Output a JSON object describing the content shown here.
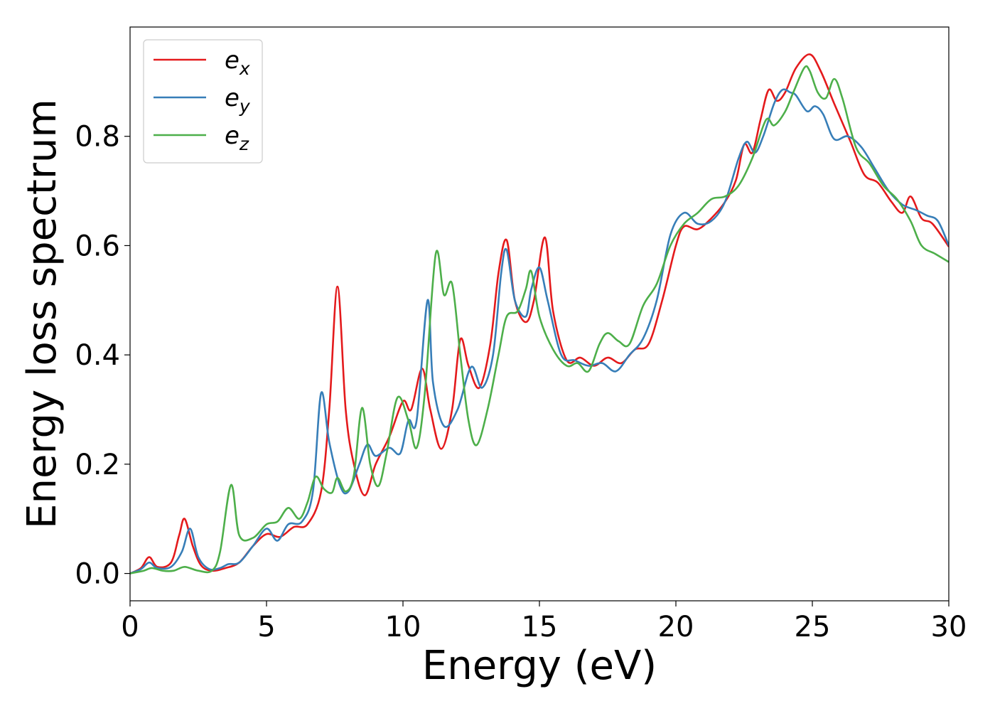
{
  "chart_data": {
    "type": "line",
    "xlabel": "Energy (eV)",
    "ylabel": "Energy loss spectrum",
    "xlim": [
      0,
      30
    ],
    "ylim": [
      -0.05,
      1.0
    ],
    "xticks": [
      0,
      5,
      10,
      15,
      20,
      25,
      30
    ],
    "yticks": [
      0.0,
      0.2,
      0.4,
      0.6,
      0.8
    ],
    "xtick_labels": [
      "0",
      "5",
      "10",
      "15",
      "20",
      "25",
      "30"
    ],
    "ytick_labels": [
      "0.0",
      "0.2",
      "0.4",
      "0.6",
      "0.8"
    ],
    "grid": false,
    "legend_position": "upper-left",
    "series": [
      {
        "name": "e_x",
        "label_base": "e",
        "label_sub": "x",
        "color": "#e41a1c",
        "points": [
          [
            0,
            0.0
          ],
          [
            0.4,
            0.01
          ],
          [
            0.7,
            0.03
          ],
          [
            1.0,
            0.012
          ],
          [
            1.5,
            0.02
          ],
          [
            1.8,
            0.07
          ],
          [
            2.0,
            0.1
          ],
          [
            2.3,
            0.05
          ],
          [
            2.6,
            0.015
          ],
          [
            3.0,
            0.005
          ],
          [
            3.5,
            0.01
          ],
          [
            4.0,
            0.02
          ],
          [
            4.5,
            0.05
          ],
          [
            5.0,
            0.072
          ],
          [
            5.5,
            0.067
          ],
          [
            6.0,
            0.085
          ],
          [
            6.5,
            0.09
          ],
          [
            7.0,
            0.15
          ],
          [
            7.3,
            0.3
          ],
          [
            7.6,
            0.525
          ],
          [
            7.9,
            0.3
          ],
          [
            8.2,
            0.2
          ],
          [
            8.6,
            0.143
          ],
          [
            9.0,
            0.2
          ],
          [
            9.5,
            0.25
          ],
          [
            10.0,
            0.315
          ],
          [
            10.3,
            0.3
          ],
          [
            10.7,
            0.375
          ],
          [
            11.0,
            0.3
          ],
          [
            11.4,
            0.228
          ],
          [
            11.8,
            0.3
          ],
          [
            12.1,
            0.428
          ],
          [
            12.4,
            0.38
          ],
          [
            12.8,
            0.34
          ],
          [
            13.2,
            0.42
          ],
          [
            13.5,
            0.55
          ],
          [
            13.8,
            0.61
          ],
          [
            14.1,
            0.5
          ],
          [
            14.5,
            0.46
          ],
          [
            14.8,
            0.5
          ],
          [
            15.2,
            0.615
          ],
          [
            15.5,
            0.48
          ],
          [
            16.0,
            0.39
          ],
          [
            16.5,
            0.395
          ],
          [
            17.0,
            0.38
          ],
          [
            17.5,
            0.395
          ],
          [
            18.0,
            0.385
          ],
          [
            18.5,
            0.41
          ],
          [
            19.0,
            0.42
          ],
          [
            19.5,
            0.5
          ],
          [
            20.0,
            0.6
          ],
          [
            20.3,
            0.635
          ],
          [
            20.8,
            0.63
          ],
          [
            21.3,
            0.65
          ],
          [
            21.8,
            0.68
          ],
          [
            22.2,
            0.72
          ],
          [
            22.5,
            0.785
          ],
          [
            22.8,
            0.77
          ],
          [
            23.1,
            0.83
          ],
          [
            23.4,
            0.885
          ],
          [
            23.7,
            0.865
          ],
          [
            24.0,
            0.88
          ],
          [
            24.4,
            0.925
          ],
          [
            24.9,
            0.95
          ],
          [
            25.3,
            0.92
          ],
          [
            25.8,
            0.86
          ],
          [
            26.4,
            0.79
          ],
          [
            26.9,
            0.73
          ],
          [
            27.4,
            0.715
          ],
          [
            27.9,
            0.68
          ],
          [
            28.3,
            0.66
          ],
          [
            28.6,
            0.69
          ],
          [
            29.0,
            0.65
          ],
          [
            29.4,
            0.64
          ],
          [
            30.0,
            0.598
          ]
        ]
      },
      {
        "name": "e_y",
        "label_base": "e",
        "label_sub": "y",
        "color": "#377eb8",
        "points": [
          [
            0,
            0.0
          ],
          [
            0.4,
            0.008
          ],
          [
            0.7,
            0.02
          ],
          [
            1.0,
            0.01
          ],
          [
            1.5,
            0.012
          ],
          [
            1.9,
            0.04
          ],
          [
            2.2,
            0.082
          ],
          [
            2.5,
            0.03
          ],
          [
            2.9,
            0.008
          ],
          [
            3.3,
            0.01
          ],
          [
            3.6,
            0.017
          ],
          [
            4.0,
            0.02
          ],
          [
            4.5,
            0.05
          ],
          [
            5.0,
            0.082
          ],
          [
            5.4,
            0.06
          ],
          [
            5.8,
            0.09
          ],
          [
            6.3,
            0.095
          ],
          [
            6.7,
            0.15
          ],
          [
            7.0,
            0.33
          ],
          [
            7.3,
            0.24
          ],
          [
            7.7,
            0.16
          ],
          [
            8.0,
            0.15
          ],
          [
            8.4,
            0.2
          ],
          [
            8.7,
            0.236
          ],
          [
            9.0,
            0.215
          ],
          [
            9.5,
            0.23
          ],
          [
            9.9,
            0.22
          ],
          [
            10.2,
            0.28
          ],
          [
            10.5,
            0.28
          ],
          [
            10.9,
            0.5
          ],
          [
            11.1,
            0.35
          ],
          [
            11.5,
            0.27
          ],
          [
            12.0,
            0.3
          ],
          [
            12.5,
            0.378
          ],
          [
            12.9,
            0.34
          ],
          [
            13.3,
            0.4
          ],
          [
            13.6,
            0.55
          ],
          [
            13.8,
            0.592
          ],
          [
            14.1,
            0.5
          ],
          [
            14.5,
            0.47
          ],
          [
            14.7,
            0.52
          ],
          [
            15.0,
            0.56
          ],
          [
            15.3,
            0.5
          ],
          [
            15.8,
            0.4
          ],
          [
            16.3,
            0.39
          ],
          [
            16.8,
            0.38
          ],
          [
            17.3,
            0.385
          ],
          [
            17.8,
            0.37
          ],
          [
            18.3,
            0.4
          ],
          [
            18.8,
            0.43
          ],
          [
            19.3,
            0.5
          ],
          [
            19.8,
            0.62
          ],
          [
            20.3,
            0.66
          ],
          [
            20.8,
            0.64
          ],
          [
            21.3,
            0.645
          ],
          [
            21.8,
            0.68
          ],
          [
            22.3,
            0.76
          ],
          [
            22.6,
            0.79
          ],
          [
            22.9,
            0.77
          ],
          [
            23.2,
            0.8
          ],
          [
            23.6,
            0.86
          ],
          [
            23.9,
            0.885
          ],
          [
            24.2,
            0.88
          ],
          [
            24.4,
            0.875
          ],
          [
            24.8,
            0.846
          ],
          [
            25.1,
            0.855
          ],
          [
            25.4,
            0.84
          ],
          [
            25.8,
            0.795
          ],
          [
            26.3,
            0.8
          ],
          [
            26.8,
            0.78
          ],
          [
            27.3,
            0.74
          ],
          [
            27.8,
            0.7
          ],
          [
            28.3,
            0.675
          ],
          [
            28.8,
            0.665
          ],
          [
            29.2,
            0.655
          ],
          [
            29.6,
            0.645
          ],
          [
            30.0,
            0.6
          ]
        ]
      },
      {
        "name": "e_z",
        "label_base": "e",
        "label_sub": "z",
        "color": "#4daf4a",
        "points": [
          [
            0,
            0.0
          ],
          [
            0.5,
            0.005
          ],
          [
            0.8,
            0.01
          ],
          [
            1.2,
            0.005
          ],
          [
            1.6,
            0.005
          ],
          [
            2.0,
            0.012
          ],
          [
            2.5,
            0.005
          ],
          [
            3.0,
            0.005
          ],
          [
            3.3,
            0.04
          ],
          [
            3.7,
            0.162
          ],
          [
            4.0,
            0.07
          ],
          [
            4.5,
            0.065
          ],
          [
            5.0,
            0.09
          ],
          [
            5.4,
            0.095
          ],
          [
            5.8,
            0.12
          ],
          [
            6.2,
            0.1
          ],
          [
            6.5,
            0.13
          ],
          [
            6.8,
            0.177
          ],
          [
            7.1,
            0.155
          ],
          [
            7.4,
            0.148
          ],
          [
            7.6,
            0.175
          ],
          [
            7.9,
            0.15
          ],
          [
            8.2,
            0.18
          ],
          [
            8.5,
            0.303
          ],
          [
            8.8,
            0.2
          ],
          [
            9.1,
            0.16
          ],
          [
            9.4,
            0.22
          ],
          [
            9.8,
            0.322
          ],
          [
            10.2,
            0.28
          ],
          [
            10.5,
            0.23
          ],
          [
            10.8,
            0.33
          ],
          [
            11.2,
            0.585
          ],
          [
            11.5,
            0.51
          ],
          [
            11.8,
            0.53
          ],
          [
            12.1,
            0.4
          ],
          [
            12.4,
            0.28
          ],
          [
            12.7,
            0.235
          ],
          [
            13.1,
            0.3
          ],
          [
            13.5,
            0.4
          ],
          [
            13.8,
            0.47
          ],
          [
            14.2,
            0.48
          ],
          [
            14.5,
            0.52
          ],
          [
            14.7,
            0.553
          ],
          [
            15.0,
            0.47
          ],
          [
            15.5,
            0.41
          ],
          [
            16.0,
            0.38
          ],
          [
            16.4,
            0.385
          ],
          [
            16.8,
            0.37
          ],
          [
            17.2,
            0.42
          ],
          [
            17.5,
            0.44
          ],
          [
            17.9,
            0.425
          ],
          [
            18.3,
            0.42
          ],
          [
            18.8,
            0.49
          ],
          [
            19.3,
            0.53
          ],
          [
            19.8,
            0.6
          ],
          [
            20.3,
            0.64
          ],
          [
            20.8,
            0.66
          ],
          [
            21.3,
            0.685
          ],
          [
            21.8,
            0.69
          ],
          [
            22.3,
            0.71
          ],
          [
            22.8,
            0.76
          ],
          [
            23.3,
            0.83
          ],
          [
            23.6,
            0.82
          ],
          [
            24.0,
            0.845
          ],
          [
            24.3,
            0.88
          ],
          [
            24.7,
            0.925
          ],
          [
            24.9,
            0.92
          ],
          [
            25.2,
            0.88
          ],
          [
            25.5,
            0.87
          ],
          [
            25.8,
            0.905
          ],
          [
            26.1,
            0.87
          ],
          [
            26.6,
            0.78
          ],
          [
            27.1,
            0.75
          ],
          [
            27.6,
            0.71
          ],
          [
            28.1,
            0.685
          ],
          [
            28.6,
            0.645
          ],
          [
            29.0,
            0.6
          ],
          [
            29.5,
            0.585
          ],
          [
            30.0,
            0.57
          ]
        ]
      }
    ]
  }
}
